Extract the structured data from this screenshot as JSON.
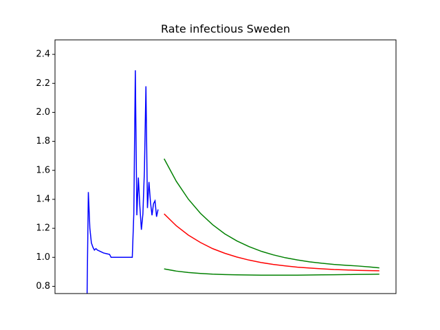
{
  "chart_data": {
    "type": "line",
    "title": "Rate infectious Sweden",
    "xlim": [
      0,
      225
    ],
    "ylim": [
      0.75,
      2.5
    ],
    "yticks": [
      0.8,
      1.2,
      1.4,
      1.6,
      1.8,
      {
        "value": 2,
        "label": "2.0"
      },
      2.2,
      2.4,
      {
        "value": 1,
        "label": "1.0"
      }
    ],
    "series": [
      {
        "color": "#0000ff",
        "x": [
          21,
          22,
          23,
          24,
          25,
          26,
          27,
          28,
          30,
          32,
          34,
          36,
          37,
          40,
          44,
          48,
          51,
          52,
          53,
          54,
          55,
          56,
          57,
          58,
          59,
          60,
          61,
          62,
          63,
          64,
          65,
          66,
          67,
          68
        ],
        "values": [
          0.6,
          1.45,
          1.2,
          1.1,
          1.07,
          1.05,
          1.06,
          1.05,
          1.04,
          1.03,
          1.025,
          1.02,
          1.0,
          1.0,
          1.0,
          1.0,
          1.0,
          1.3,
          2.29,
          1.29,
          1.55,
          1.35,
          1.19,
          1.3,
          1.6,
          2.18,
          1.34,
          1.52,
          1.38,
          1.29,
          1.37,
          1.39,
          1.28,
          1.33
        ]
      },
      {
        "color": "#ff0000",
        "x": [
          72,
          80,
          88,
          96,
          104,
          112,
          120,
          128,
          136,
          144,
          152,
          160,
          168,
          176,
          184,
          192,
          200,
          208,
          214
        ],
        "values": [
          1.3,
          1.218,
          1.153,
          1.102,
          1.06,
          1.028,
          1.002,
          0.981,
          0.964,
          0.951,
          0.941,
          0.932,
          0.926,
          0.921,
          0.916,
          0.913,
          0.91,
          0.908,
          0.907
        ]
      },
      {
        "color": "#008000",
        "x": [
          72,
          80,
          88,
          96,
          104,
          112,
          120,
          128,
          136,
          144,
          152,
          160,
          168,
          176,
          184,
          192,
          200,
          208,
          214
        ],
        "values": [
          1.68,
          1.525,
          1.401,
          1.303,
          1.225,
          1.162,
          1.113,
          1.074,
          1.042,
          1.017,
          0.997,
          0.982,
          0.969,
          0.959,
          0.951,
          0.945,
          0.94,
          0.933,
          0.927
        ]
      },
      {
        "color": "#008000",
        "x": [
          72,
          80,
          88,
          96,
          104,
          112,
          120,
          128,
          136,
          144,
          152,
          160,
          168,
          176,
          184,
          192,
          200,
          208,
          214
        ],
        "values": [
          0.92,
          0.905,
          0.895,
          0.889,
          0.884,
          0.881,
          0.879,
          0.878,
          0.877,
          0.877,
          0.877,
          0.877,
          0.878,
          0.879,
          0.88,
          0.881,
          0.882,
          0.883,
          0.884
        ]
      }
    ]
  }
}
